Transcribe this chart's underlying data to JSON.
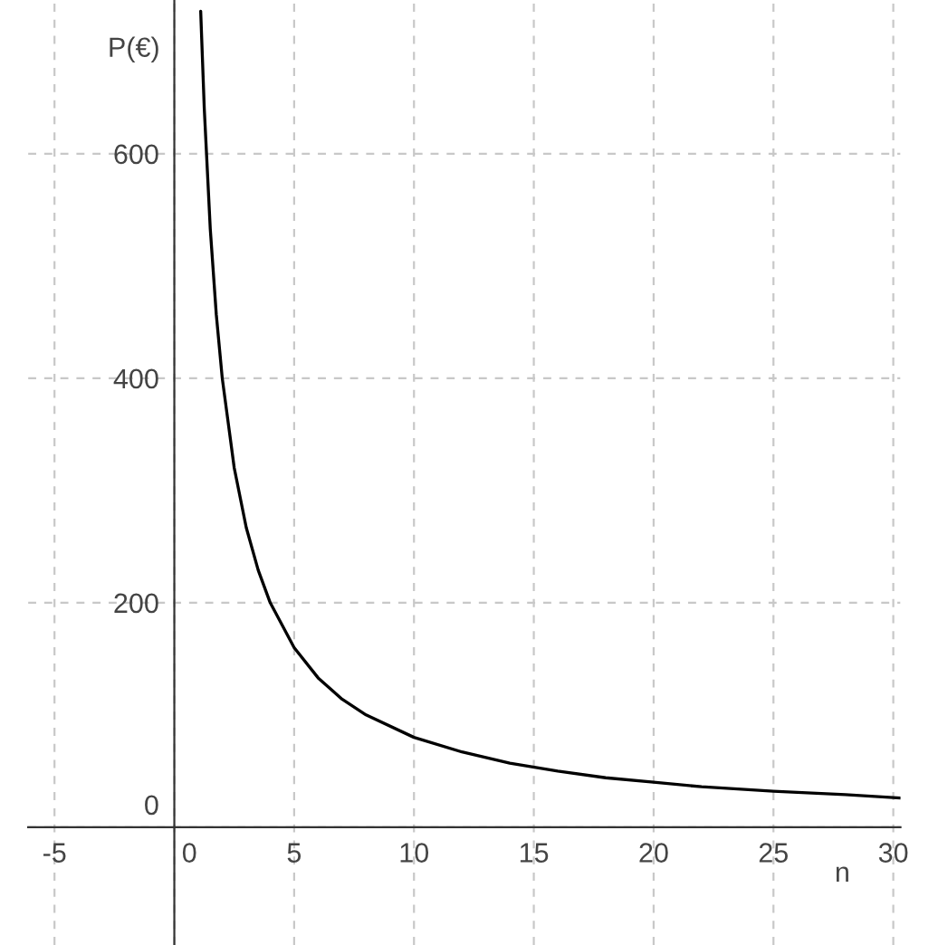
{
  "chart_data": {
    "type": "line",
    "xlabel": "n",
    "ylabel": "P(€)",
    "x": [
      1.1,
      1.25,
      1.5,
      1.75,
      2,
      2.5,
      3,
      3.5,
      4,
      5,
      6,
      7,
      8,
      10,
      12,
      14,
      16,
      18,
      20,
      22,
      25,
      28,
      30.3
    ],
    "series": [
      {
        "color": "#000000",
        "values": [
          727,
          640,
          533,
          457,
          400,
          320,
          267,
          229,
          200,
          160,
          133,
          114,
          100,
          80,
          67,
          57,
          50,
          44,
          40,
          36,
          32,
          29,
          26
        ]
      }
    ],
    "xlim": [
      -6.1,
      30.3
    ],
    "ylim": [
      -105,
      737
    ],
    "xticks": [
      -5,
      0,
      5,
      10,
      15,
      20,
      25,
      30
    ],
    "yticks": [
      0,
      200,
      400,
      600
    ],
    "grid": true,
    "marker": "none",
    "line_style": "solid"
  }
}
